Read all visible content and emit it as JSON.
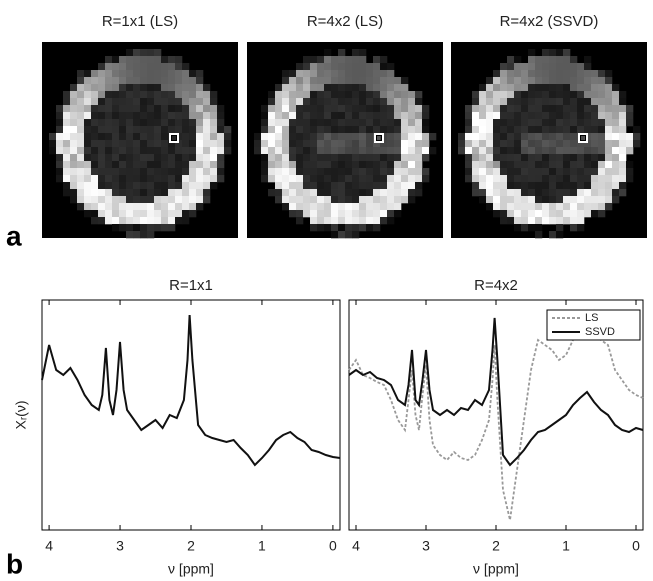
{
  "panel_a": {
    "label": "a",
    "images": [
      {
        "title": "R=1x1 (LS)"
      },
      {
        "title": "R=4x2 (LS)"
      },
      {
        "title": "R=4x2 (SSVD)"
      }
    ]
  },
  "panel_b": {
    "label": "b"
  },
  "chart_data": [
    {
      "type": "line",
      "title": "R=1x1",
      "x_label": "ν [ppm]",
      "y_label": "Xᵣ(ν)",
      "xlim": [
        4.1,
        -0.1
      ],
      "xticks": [
        4,
        3,
        2,
        1,
        0
      ],
      "ylim": [
        0,
        230
      ],
      "x": [
        4.1,
        4.0,
        3.9,
        3.8,
        3.7,
        3.6,
        3.5,
        3.4,
        3.3,
        3.25,
        3.2,
        3.15,
        3.1,
        3.05,
        3.0,
        2.95,
        2.9,
        2.8,
        2.7,
        2.6,
        2.5,
        2.4,
        2.3,
        2.2,
        2.1,
        2.05,
        2.02,
        1.98,
        1.9,
        1.8,
        1.7,
        1.6,
        1.5,
        1.4,
        1.3,
        1.2,
        1.1,
        1.0,
        0.9,
        0.8,
        0.7,
        0.6,
        0.5,
        0.4,
        0.3,
        0.2,
        0.1,
        0.0,
        -0.1
      ],
      "series": [
        {
          "color": "#111111",
          "dash": false,
          "values": [
            150,
            185,
            160,
            155,
            162,
            150,
            135,
            125,
            120,
            135,
            182,
            130,
            115,
            140,
            188,
            140,
            120,
            110,
            100,
            105,
            110,
            102,
            115,
            112,
            130,
            170,
            215,
            170,
            105,
            95,
            92,
            90,
            88,
            90,
            82,
            75,
            65,
            72,
            80,
            90,
            95,
            98,
            92,
            88,
            80,
            78,
            75,
            73,
            72
          ]
        }
      ]
    },
    {
      "type": "line",
      "title": "R=4x2",
      "x_label": "ν [ppm]",
      "xlim": [
        4.1,
        -0.1
      ],
      "xticks": [
        4,
        3,
        2,
        1,
        0
      ],
      "ylim": [
        0,
        230
      ],
      "legend": "upper right",
      "x": [
        4.1,
        4.0,
        3.9,
        3.8,
        3.7,
        3.6,
        3.5,
        3.4,
        3.3,
        3.25,
        3.2,
        3.15,
        3.1,
        3.05,
        3.0,
        2.95,
        2.9,
        2.8,
        2.7,
        2.6,
        2.5,
        2.4,
        2.3,
        2.2,
        2.1,
        2.05,
        2.02,
        1.98,
        1.9,
        1.8,
        1.7,
        1.6,
        1.5,
        1.4,
        1.3,
        1.2,
        1.1,
        1.0,
        0.9,
        0.8,
        0.7,
        0.6,
        0.5,
        0.4,
        0.3,
        0.2,
        0.1,
        0.0,
        -0.1
      ],
      "series": [
        {
          "name": "LS",
          "color": "#999999",
          "dash": true,
          "values": [
            160,
            170,
            155,
            152,
            148,
            145,
            130,
            110,
            100,
            130,
            160,
            115,
            100,
            135,
            165,
            110,
            85,
            75,
            70,
            78,
            72,
            70,
            75,
            90,
            110,
            150,
            185,
            130,
            40,
            10,
            60,
            110,
            160,
            190,
            185,
            180,
            170,
            175,
            190,
            195,
            200,
            200,
            190,
            185,
            160,
            150,
            140,
            135,
            132
          ]
        },
        {
          "name": "SSVD",
          "color": "#111111",
          "dash": false,
          "values": [
            155,
            160,
            155,
            158,
            152,
            150,
            145,
            130,
            125,
            145,
            180,
            130,
            125,
            150,
            180,
            140,
            120,
            115,
            120,
            115,
            122,
            120,
            130,
            125,
            140,
            180,
            212,
            170,
            75,
            65,
            72,
            80,
            90,
            98,
            100,
            105,
            110,
            115,
            125,
            132,
            138,
            128,
            120,
            115,
            105,
            100,
            98,
            102,
            100
          ]
        }
      ]
    }
  ]
}
